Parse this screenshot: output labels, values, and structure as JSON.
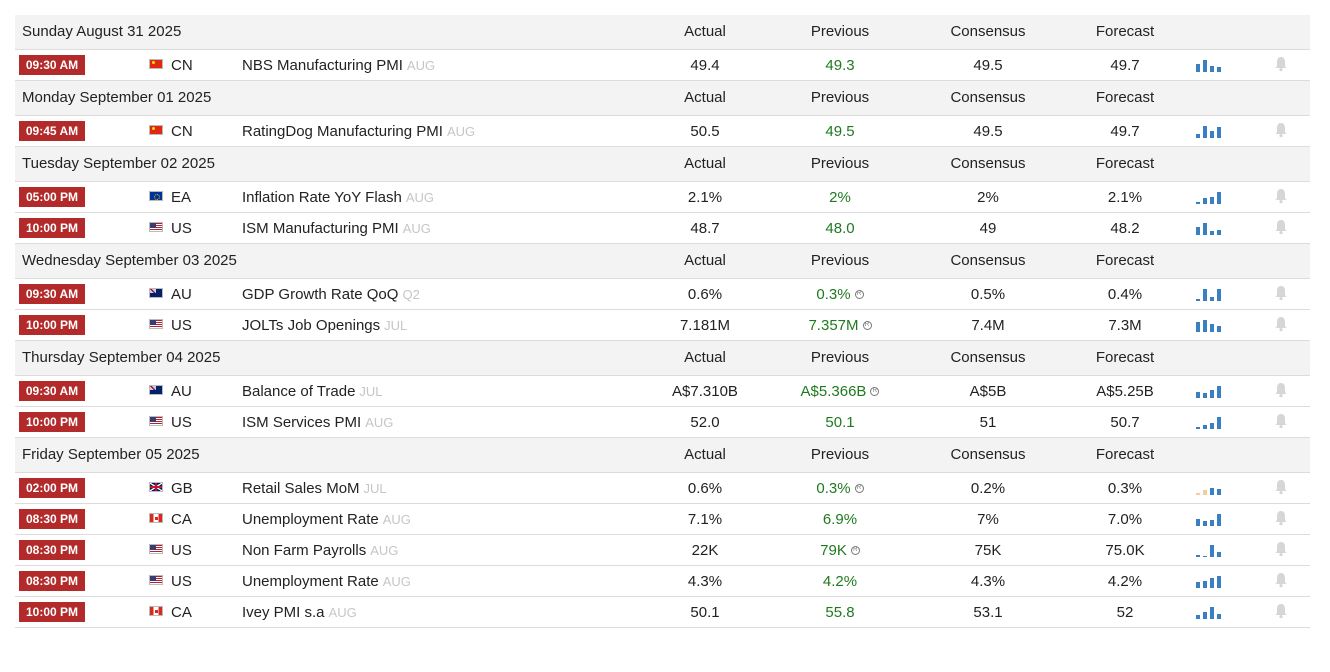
{
  "columns": {
    "actual": "Actual",
    "previous": "Previous",
    "consensus": "Consensus",
    "forecast": "Forecast"
  },
  "colors": {
    "time_badge": "#b22a2a",
    "previous_value": "#1f7a1f",
    "period": "#c6c6c6",
    "spark_bar": "#3a7fc1",
    "spark_bar_pending": "#f5cba0",
    "header_bg": "#f3f3f3"
  },
  "icons": {
    "bell": "bell-icon",
    "sparkline": "sparkline-icon",
    "revised": "revised-icon"
  },
  "days": [
    {
      "date": "Sunday August 31 2025",
      "events": [
        {
          "time": "09:30 AM",
          "flag": "CN",
          "country": "CN",
          "name": "NBS Manufacturing PMI",
          "period": "AUG",
          "actual": "49.4",
          "previous": "49.3",
          "revised": false,
          "consensus": "49.5",
          "forecast": "49.7",
          "spark": [
            0.7,
            1.0,
            0.5,
            0.4
          ],
          "spark_pending": false
        }
      ]
    },
    {
      "date": "Monday September 01 2025",
      "events": [
        {
          "time": "09:45 AM",
          "flag": "CN",
          "country": "CN",
          "name": "RatingDog Manufacturing PMI",
          "period": "AUG",
          "actual": "50.5",
          "previous": "49.5",
          "revised": false,
          "consensus": "49.5",
          "forecast": "49.7",
          "spark": [
            0.3,
            1.0,
            0.6,
            0.9
          ],
          "spark_pending": false
        }
      ]
    },
    {
      "date": "Tuesday September 02 2025",
      "events": [
        {
          "time": "05:00 PM",
          "flag": "EA",
          "country": "EA",
          "name": "Inflation Rate YoY Flash",
          "period": "AUG",
          "actual": "2.1%",
          "previous": "2%",
          "revised": false,
          "consensus": "2%",
          "forecast": "2.1%",
          "spark": [
            0.2,
            0.5,
            0.6,
            1.0
          ],
          "spark_pending": false
        },
        {
          "time": "10:00 PM",
          "flag": "US",
          "country": "US",
          "name": "ISM Manufacturing PMI",
          "period": "AUG",
          "actual": "48.7",
          "previous": "48.0",
          "revised": false,
          "consensus": "49",
          "forecast": "48.2",
          "spark": [
            0.7,
            1.0,
            0.3,
            0.4
          ],
          "spark_pending": false
        }
      ]
    },
    {
      "date": "Wednesday September 03 2025",
      "events": [
        {
          "time": "09:30 AM",
          "flag": "AU",
          "country": "AU",
          "name": "GDP Growth Rate QoQ",
          "period": "Q2",
          "actual": "0.6%",
          "previous": "0.3%",
          "revised": true,
          "consensus": "0.5%",
          "forecast": "0.4%",
          "spark": [
            0.2,
            1.0,
            0.3,
            1.0
          ],
          "spark_pending": false
        },
        {
          "time": "10:00 PM",
          "flag": "US",
          "country": "US",
          "name": "JOLTs Job Openings",
          "period": "JUL",
          "actual": "7.181M",
          "previous": "7.357M",
          "revised": true,
          "consensus": "7.4M",
          "forecast": "7.3M",
          "spark": [
            0.8,
            1.0,
            0.7,
            0.5
          ],
          "spark_pending": false
        }
      ]
    },
    {
      "date": "Thursday September 04 2025",
      "events": [
        {
          "time": "09:30 AM",
          "flag": "AU",
          "country": "AU",
          "name": "Balance of Trade",
          "period": "JUL",
          "actual": "A$7.310B",
          "previous": "A$5.366B",
          "revised": true,
          "consensus": "A$5B",
          "forecast": "A$5.25B",
          "spark": [
            0.5,
            0.4,
            0.7,
            1.0
          ],
          "spark_pending": false
        },
        {
          "time": "10:00 PM",
          "flag": "US",
          "country": "US",
          "name": "ISM Services PMI",
          "period": "AUG",
          "actual": "52.0",
          "previous": "50.1",
          "revised": false,
          "consensus": "51",
          "forecast": "50.7",
          "spark": [
            0.2,
            0.3,
            0.5,
            1.0
          ],
          "spark_pending": false
        }
      ]
    },
    {
      "date": "Friday September 05 2025",
      "events": [
        {
          "time": "02:00 PM",
          "flag": "GB",
          "country": "GB",
          "name": "Retail Sales MoM",
          "period": "JUL",
          "actual": "0.6%",
          "previous": "0.3%",
          "revised": true,
          "consensus": "0.2%",
          "forecast": "0.3%",
          "spark": [
            0.15,
            0.4,
            0.6,
            0.5
          ],
          "spark_pending": true
        },
        {
          "time": "08:30 PM",
          "flag": "CA",
          "country": "CA",
          "name": "Unemployment Rate",
          "period": "AUG",
          "actual": "7.1%",
          "previous": "6.9%",
          "revised": false,
          "consensus": "7%",
          "forecast": "7.0%",
          "spark": [
            0.6,
            0.4,
            0.5,
            1.0
          ],
          "spark_pending": false
        },
        {
          "time": "08:30 PM",
          "flag": "US",
          "country": "US",
          "name": "Non Farm Payrolls",
          "period": "AUG",
          "actual": "22K",
          "previous": "79K",
          "revised": true,
          "consensus": "75K",
          "forecast": "75.0K",
          "spark": [
            0.2,
            0.0,
            1.0,
            0.4
          ],
          "spark_pending": false
        },
        {
          "time": "08:30 PM",
          "flag": "US",
          "country": "US",
          "name": "Unemployment Rate",
          "period": "AUG",
          "actual": "4.3%",
          "previous": "4.2%",
          "revised": false,
          "consensus": "4.3%",
          "forecast": "4.2%",
          "spark": [
            0.5,
            0.6,
            0.8,
            1.0
          ],
          "spark_pending": false
        },
        {
          "time": "10:00 PM",
          "flag": "CA",
          "country": "CA",
          "name": "Ivey PMI s.a",
          "period": "AUG",
          "actual": "50.1",
          "previous": "55.8",
          "revised": false,
          "consensus": "53.1",
          "forecast": "52",
          "spark": [
            0.3,
            0.6,
            1.0,
            0.4
          ],
          "spark_pending": false
        }
      ]
    }
  ]
}
